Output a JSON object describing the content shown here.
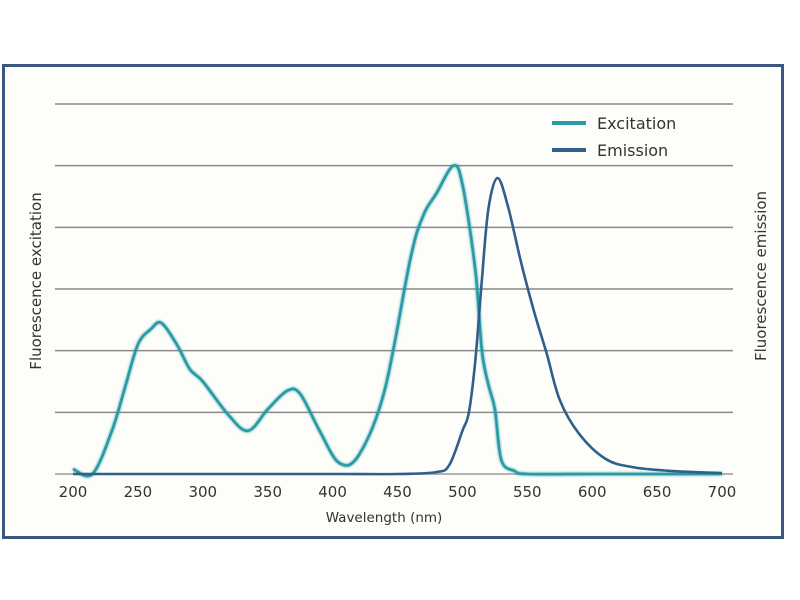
{
  "chart_data": {
    "type": "line",
    "title": "",
    "xlabel": "Wavelength (nm)",
    "ylabel_left": "Fluorescence excitation",
    "ylabel_right": "Fluorescence emission",
    "y_scale_note": "ASSUMPTION: the y-axes have no tick labels, so intensities are relative — normalized so the excitation peak = 1.0 with gridlines every 0.2. Values are estimated from pixel positions (approx. ±0.03).",
    "xlim": [
      200,
      700
    ],
    "ylim": [
      0,
      1.2
    ],
    "x_ticks": [
      200,
      250,
      300,
      350,
      400,
      450,
      500,
      550,
      600,
      650,
      700
    ],
    "y_gridlines": [
      0.2,
      0.4,
      0.6,
      0.8,
      1.0,
      1.2
    ],
    "grid": true,
    "legend_position": "top-right",
    "series": [
      {
        "name": "Excitation",
        "color": "#2a9aa5",
        "x": [
          200,
          215,
          230,
          240,
          250,
          260,
          268,
          280,
          290,
          300,
          320,
          335,
          350,
          365,
          375,
          390,
          405,
          420,
          440,
          460,
          470,
          480,
          493,
          500,
          510,
          515,
          520,
          525,
          530,
          540,
          550,
          600,
          650,
          700
        ],
        "y": [
          0.016,
          0.0,
          0.14,
          0.28,
          0.42,
          0.47,
          0.49,
          0.42,
          0.34,
          0.3,
          0.19,
          0.14,
          0.21,
          0.27,
          0.26,
          0.14,
          0.036,
          0.06,
          0.27,
          0.7,
          0.84,
          0.91,
          1.0,
          0.94,
          0.66,
          0.4,
          0.29,
          0.21,
          0.045,
          0.01,
          0.0,
          0.0,
          0.0,
          0.0
        ]
      },
      {
        "name": "Emission",
        "color": "#2f5f8a",
        "x": [
          200,
          300,
          400,
          450,
          480,
          490,
          500,
          505,
          510,
          515,
          520,
          527,
          535,
          545,
          555,
          565,
          575,
          590,
          610,
          630,
          660,
          700
        ],
        "y": [
          0.0,
          0.0,
          0.0,
          0.0,
          0.006,
          0.03,
          0.14,
          0.2,
          0.37,
          0.63,
          0.86,
          0.96,
          0.87,
          0.69,
          0.53,
          0.39,
          0.24,
          0.13,
          0.05,
          0.023,
          0.01,
          0.003
        ]
      }
    ]
  }
}
